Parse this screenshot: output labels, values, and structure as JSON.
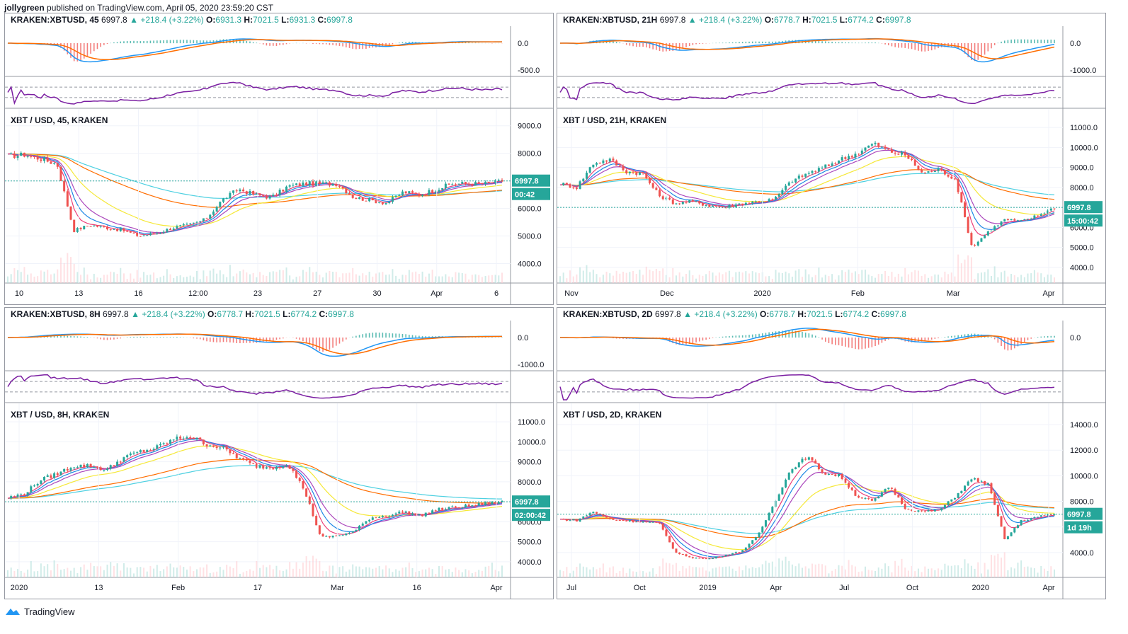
{
  "header": {
    "author": "jollygreen",
    "published": "published on TradingView.com, April 05, 2020 23:59:20 CST"
  },
  "footer": {
    "brand": "TradingView"
  },
  "colors": {
    "up": "#26a69a",
    "down": "#ef5350",
    "macd": "#2196f3",
    "signal": "#ff6d00",
    "rsi": "#7b1fa2",
    "ma_cyan": "#4dd0e1",
    "ma_yellow": "#f5e837",
    "ma_purple": "#ab47bc",
    "ma_blue": "#1e88e5"
  },
  "panels": [
    {
      "id": "p45",
      "symbol": "KRAKEN:XBTUSD, 45",
      "last": "6997.8",
      "chg": "+218.4 (+3.22%)",
      "o": "6931.3",
      "h": "7021.5",
      "l": "6931.3",
      "c": "6997.8",
      "title": "XBT / USD, 45, KRAKEN",
      "macd_ticks": [
        "0.0",
        "-500.0"
      ],
      "price_ticks": [
        "9000.0",
        "8000.0",
        "7000.0",
        "6000.0",
        "5000.0",
        "4000.0"
      ],
      "x_ticks": [
        "10",
        "13",
        "16",
        "12:00",
        "23",
        "27",
        "30",
        "Apr",
        "6"
      ],
      "price_tag": "6997.8",
      "countdown": "00:42",
      "chart_data": {
        "type": "line",
        "series": [
          {
            "name": "XBTUSD 45m",
            "values": [
              7900,
              7950,
              7800,
              7600,
              5200,
              5400,
              5300,
              5200,
              5000,
              5100,
              5300,
              5400,
              5600,
              6300,
              6700,
              6500,
              6400,
              6800,
              6900,
              6900,
              6900,
              6400,
              6300,
              6200,
              6600,
              6500,
              6700,
              6900,
              6900,
              6900,
              6998
            ]
          }
        ],
        "ylim": [
          3500,
          9300
        ]
      }
    },
    {
      "id": "p21h",
      "symbol": "KRAKEN:XBTUSD, 21H",
      "last": "6997.8",
      "chg": "+218.4 (+3.22%)",
      "o": "6778.7",
      "h": "7021.5",
      "l": "6774.2",
      "c": "6997.8",
      "title": "XBT / USD, 21H, KRAKEN",
      "macd_ticks": [
        "0.0",
        "-1000.0"
      ],
      "price_ticks": [
        "11000.0",
        "10000.0",
        "9000.0",
        "8000.0",
        "7000.0",
        "6000.0",
        "5000.0",
        "4000.0"
      ],
      "x_ticks": [
        "Nov",
        "Dec",
        "2020",
        "Feb",
        "Mar",
        "Apr"
      ],
      "price_tag": "6997.8",
      "countdown": "15:00:42",
      "chart_data": {
        "type": "line",
        "series": [
          {
            "name": "XBTUSD 21H",
            "values": [
              8200,
              8000,
              9200,
              9400,
              8800,
              8700,
              7600,
              7200,
              7300,
              7100,
              7000,
              7200,
              7300,
              7400,
              8300,
              8700,
              9000,
              9400,
              9700,
              10200,
              9800,
              9600,
              8700,
              8900,
              8400,
              5000,
              5800,
              6400,
              6300,
              6600,
              6998
            ]
          }
        ],
        "ylim": [
          3500,
          11500
        ]
      }
    },
    {
      "id": "p8h",
      "symbol": "KRAKEN:XBTUSD, 8H",
      "last": "6997.8",
      "chg": "+218.4 (+3.22%)",
      "o": "6778.7",
      "h": "7021.5",
      "l": "6774.2",
      "c": "6997.8",
      "title": "XBT / USD, 8H, KRAKEN",
      "macd_ticks": [
        "0.0",
        "-1000.0"
      ],
      "price_ticks": [
        "11000.0",
        "10000.0",
        "9000.0",
        "8000.0",
        "7000.0",
        "6000.0",
        "5000.0",
        "4000.0"
      ],
      "x_ticks": [
        "2020",
        "13",
        "Feb",
        "17",
        "Mar",
        "16",
        "Apr"
      ],
      "price_tag": "6997.8",
      "countdown": "02:00:42",
      "chart_data": {
        "type": "line",
        "series": [
          {
            "name": "XBTUSD 8H",
            "values": [
              7200,
              7400,
              8100,
              8400,
              8800,
              8800,
              8600,
              9200,
              9500,
              9700,
              10100,
              10300,
              9900,
              9700,
              9200,
              8800,
              8700,
              8900,
              7600,
              5200,
              5300,
              5500,
              6200,
              6300,
              6500,
              6300,
              6600,
              6700,
              6800,
              6900,
              6998
            ]
          }
        ],
        "ylim": [
          3500,
          11500
        ]
      }
    },
    {
      "id": "p2d",
      "symbol": "KRAKEN:XBTUSD, 2D",
      "last": "6997.8",
      "chg": "+218.4 (+3.22%)",
      "o": "6778.7",
      "h": "7021.5",
      "l": "6774.2",
      "c": "6997.8",
      "title": "XBT / USD, 2D, KRAKEN",
      "macd_ticks": [
        "0.0"
      ],
      "price_ticks": [
        "14000.0",
        "12000.0",
        "10000.0",
        "8000.0",
        "6000.0",
        "4000.0"
      ],
      "x_ticks": [
        "Jul",
        "Oct",
        "2019",
        "Apr",
        "Jul",
        "Oct",
        "2020",
        "Apr"
      ],
      "price_tag": "6997.8",
      "countdown": "1d 19h",
      "chart_data": {
        "type": "line",
        "series": [
          {
            "name": "XBTUSD 2D",
            "values": [
              6600,
              6500,
              7200,
              6600,
              6500,
              6400,
              6300,
              4000,
              3600,
              3500,
              3800,
              4100,
              5300,
              7900,
              10500,
              11500,
              10200,
              10000,
              8400,
              8000,
              9200,
              7400,
              7200,
              7300,
              8400,
              9800,
              9300,
              5000,
              6500,
              6800,
              6998
            ]
          }
        ],
        "ylim": [
          2500,
          15000
        ]
      }
    }
  ]
}
